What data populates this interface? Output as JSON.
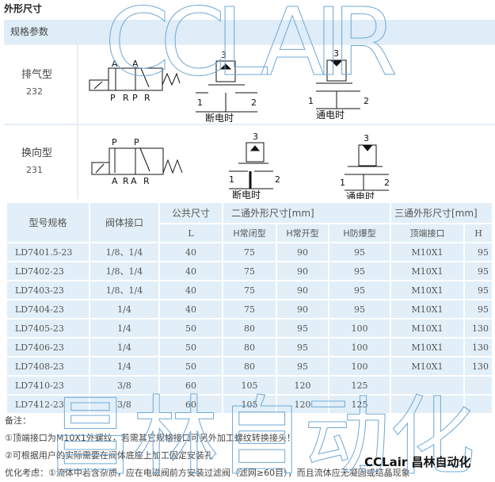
{
  "title": "外形尺寸",
  "spec": {
    "header": "规格参数",
    "rows": [
      {
        "name": "排气型",
        "code": "232",
        "ports_top": [
          "A",
          "A"
        ],
        "ports_bottom": [
          "P",
          "R",
          "P",
          "R"
        ],
        "state_off": "断电时",
        "state_on": "通电时",
        "port_labels": [
          "1",
          "2",
          "3"
        ]
      },
      {
        "name": "换向型",
        "code": "231",
        "ports_top": [
          "P",
          "P"
        ],
        "ports_bottom": [
          "A",
          "R",
          "A",
          "R"
        ],
        "state_off": "断电时",
        "state_on": "通电时",
        "port_labels": [
          "1",
          "2",
          "3"
        ]
      }
    ]
  },
  "table": {
    "headers": {
      "model": "型号规格",
      "port": "阀体接口",
      "common": "公共尺寸",
      "two_way": "二通外形尺寸[mm]",
      "three_way": "三通外形尺寸[mm]",
      "sub": [
        "L",
        "H常闭型",
        "H常开型",
        "H防爆型",
        "顶端接口",
        "H"
      ]
    },
    "rows": [
      [
        "LD7401.5-23",
        "1/8、1/4",
        "40",
        "75",
        "90",
        "95",
        "M10X1",
        "95"
      ],
      [
        "LD7402-23",
        "1/8、1/4",
        "40",
        "75",
        "90",
        "95",
        "M10X1",
        "95"
      ],
      [
        "LD7403-23",
        "1/8、1/4",
        "40",
        "75",
        "90",
        "95",
        "M10X1",
        "95"
      ],
      [
        "LD7404-23",
        "1/4",
        "40",
        "75",
        "90",
        "95",
        "M10X1",
        "95"
      ],
      [
        "LD7405-23",
        "1/4",
        "50",
        "80",
        "95",
        "100",
        "M10X1",
        "130"
      ],
      [
        "LD7406-23",
        "1/4",
        "50",
        "80",
        "95",
        "100",
        "M10X1",
        "130"
      ],
      [
        "LD7408-23",
        "1/4",
        "50",
        "80",
        "95",
        "100",
        "M10X1",
        "130"
      ],
      [
        "LD7410-23",
        "3/8",
        "60",
        "105",
        "120",
        "125",
        "",
        ""
      ],
      [
        "LD7412-23",
        "3/8",
        "60",
        "105",
        "120",
        "125",
        "",
        ""
      ]
    ]
  },
  "notes": {
    "label": "备注：",
    "items": [
      "①顶端接口为M10X1外螺纹，若需其它规格接口可另外加工螺纹转换接头！",
      "②可根据用户的实际需要在阀体底座上加工固定安装孔",
      "优化考虑：①流体中若含杂质，应在电磁阀前方安装过滤阀（滤网≥60目），而且流体应无凝固或结晶现象"
    ]
  },
  "watermark": {
    "top": "CCLAIR",
    "bottom": "昌林自动化",
    "brand": "CCLair 昌林自动化"
  },
  "colors": {
    "header_bg": "#deedf7",
    "cell_bg": "#e2eff8",
    "watermark": "#6fa8d6"
  }
}
